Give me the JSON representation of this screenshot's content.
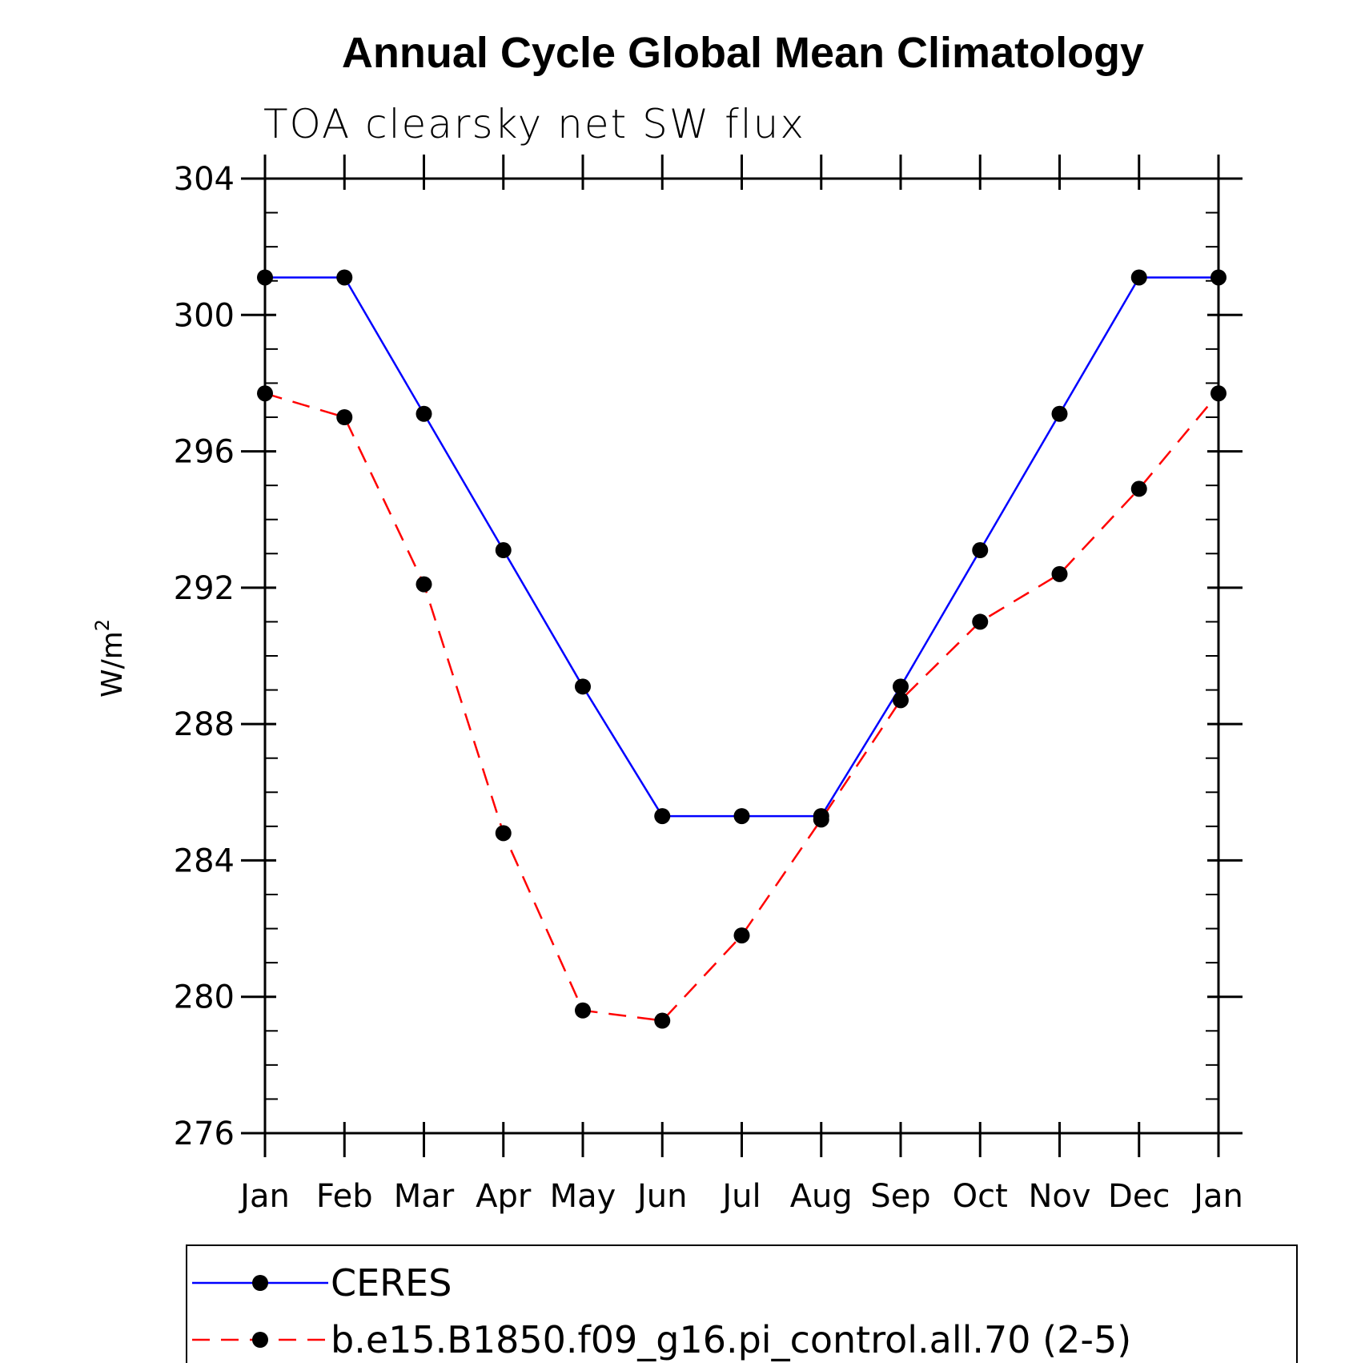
{
  "chart_data": {
    "type": "line",
    "title": "Annual Cycle Global Mean Climatology",
    "subtitle": "TOA clearsky net SW flux",
    "ylabel": "W/m",
    "ylabel_superscript": "2",
    "xlabel": "",
    "categories": [
      "Jan",
      "Feb",
      "Mar",
      "Apr",
      "May",
      "Jun",
      "Jul",
      "Aug",
      "Sep",
      "Oct",
      "Nov",
      "Dec",
      "Jan"
    ],
    "ylim": [
      276,
      304
    ],
    "yticks": [
      276,
      280,
      284,
      288,
      292,
      296,
      300,
      304
    ],
    "grid": false,
    "legend_position": "bottom",
    "series": [
      {
        "name": "CERES",
        "color": "#0000ff",
        "line_style": "solid",
        "marker": "filled-circle",
        "values": [
          301.1,
          301.1,
          297.1,
          293.1,
          289.1,
          285.3,
          285.3,
          285.3,
          289.1,
          293.1,
          297.1,
          301.1,
          301.1
        ]
      },
      {
        "name": "b.e15.B1850.f09_g16.pi_control.all.70 (2-5)",
        "color": "#ff0000",
        "line_style": "dashed",
        "marker": "filled-circle",
        "values": [
          297.7,
          297.0,
          292.1,
          284.8,
          279.6,
          279.3,
          281.8,
          285.2,
          288.7,
          291.0,
          292.4,
          294.9,
          297.7
        ]
      }
    ]
  }
}
